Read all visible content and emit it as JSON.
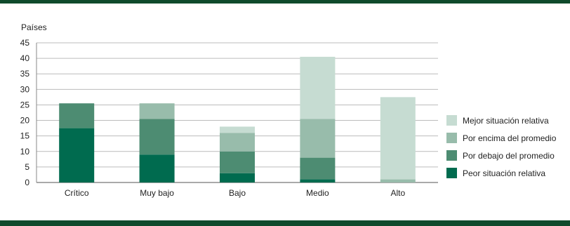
{
  "chart_data": {
    "type": "bar",
    "stacked": true,
    "ylabel": "Países",
    "ylim": [
      0,
      45
    ],
    "yticks": [
      0,
      5,
      10,
      15,
      20,
      25,
      30,
      35,
      40,
      45
    ],
    "grid": true,
    "legend_position": "right",
    "categories": [
      "Crítico",
      "Muy bajo",
      "Bajo",
      "Medio",
      "Alto"
    ],
    "series": [
      {
        "name": "Peor situación relativa",
        "color": "#006b4f",
        "values": [
          17.5,
          9,
          3,
          1,
          0
        ]
      },
      {
        "name": "Por debajo del promedio",
        "color": "#4d8c72",
        "values": [
          8,
          11.5,
          7,
          7,
          0
        ]
      },
      {
        "name": "Por encima del promedio",
        "color": "#98bcab",
        "values": [
          0,
          5,
          6,
          12.5,
          1
        ]
      },
      {
        "name": "Mejor situación relativa",
        "color": "#c6dcd2",
        "values": [
          0,
          0,
          2,
          20,
          26.5
        ]
      }
    ]
  }
}
